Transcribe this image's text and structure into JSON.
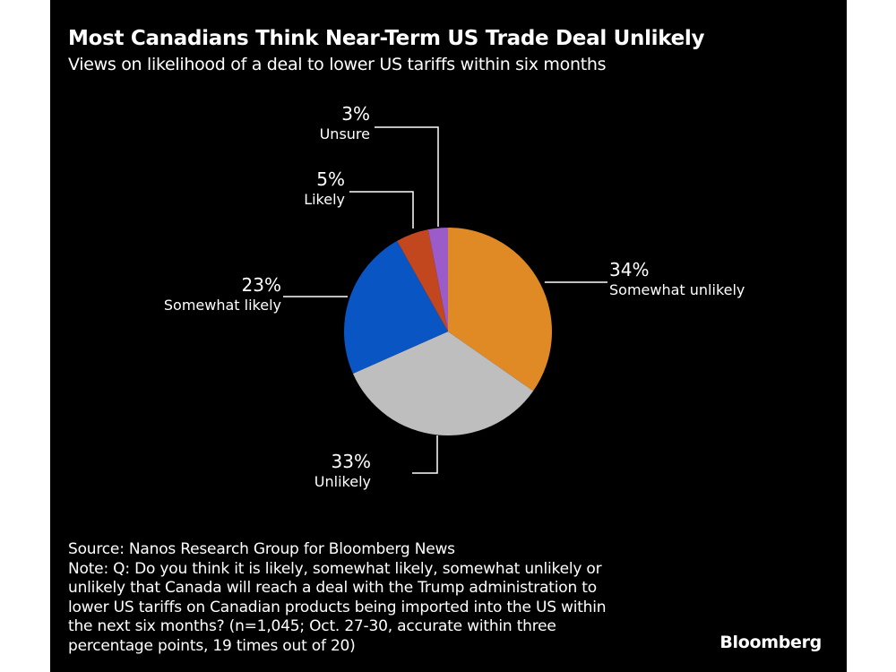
{
  "header": {
    "title": "Most Canadians Think Near-Term US Trade Deal Unlikely",
    "subtitle": "Views on likelihood of a deal to lower US tariffs within six months"
  },
  "chart_data": {
    "type": "pie",
    "title": "Most Canadians Think Near-Term US Trade Deal Unlikely",
    "subtitle": "Views on likelihood of a deal to lower US tariffs within six months",
    "unit": "%",
    "start": "12 o'clock, clockwise",
    "slices": [
      {
        "label": "Somewhat unlikely",
        "value": 34,
        "display": "34%",
        "color": "#E08A26"
      },
      {
        "label": "Unlikely",
        "value": 33,
        "display": "33%",
        "color": "#BEBEBE"
      },
      {
        "label": "Somewhat likely",
        "value": 23,
        "display": "23%",
        "color": "#0A55C4"
      },
      {
        "label": "Likely",
        "value": 5,
        "display": "5%",
        "color": "#C2471E"
      },
      {
        "label": "Unsure",
        "value": 3,
        "display": "3%",
        "color": "#9B5BC8"
      }
    ]
  },
  "footer": {
    "source": "Source: Nanos Research Group for Bloomberg News",
    "note_lines": [
      "Note: Q: Do you think it is likely, somewhat likely, somewhat unlikely or",
      "unlikely that Canada will reach a deal with the Trump administration to",
      "lower US tariffs on Canadian products being imported into the US within",
      "the next six months? (n=1,045; Oct. 27-30, accurate within three",
      "percentage points, 19 times out of 20)"
    ]
  },
  "brand": "Bloomberg"
}
